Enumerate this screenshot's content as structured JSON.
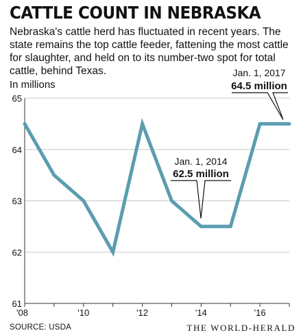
{
  "header": {
    "title": "CATTLE COUNT IN NEBRASKA",
    "subtitle": "Nebraska's cattle herd has fluctuated in recent years. The state remains the top cattle feeder, fattening the most cattle for slaughter, and held on to its number-two spot for total cattle, behind Texas."
  },
  "footer": {
    "source": "SOURCE: USDA",
    "brand": "THE WORLD-HERALD"
  },
  "colors": {
    "line": "#5b9db0",
    "grid": "#c8c8c8",
    "axis": "#333333",
    "text": "#111111"
  },
  "chart_data": {
    "type": "line",
    "unit_label": "In millions",
    "x": [
      2008,
      2009,
      2010,
      2011,
      2012,
      2013,
      2014,
      2015,
      2016,
      2017
    ],
    "y": [
      64.5,
      63.5,
      63.0,
      62.0,
      64.5,
      63.0,
      62.5,
      62.5,
      64.5,
      64.5
    ],
    "ylim": [
      61,
      65
    ],
    "yticks": [
      "61",
      "62",
      "63",
      "64",
      "65"
    ],
    "xticks": [
      {
        "value": 2008,
        "label": "'08"
      },
      {
        "value": 2010,
        "label": "'10"
      },
      {
        "value": 2012,
        "label": "'12"
      },
      {
        "value": 2014,
        "label": "'14"
      },
      {
        "value": 2016,
        "label": "'16"
      }
    ],
    "grid": "horizontal",
    "annotations": [
      {
        "date": "Jan. 1, 2014",
        "value": "62.5 million",
        "x": 2014,
        "y": 62.5
      },
      {
        "date": "Jan. 1, 2017",
        "value": "64.5 million",
        "x": 2017,
        "y": 64.5
      }
    ]
  }
}
